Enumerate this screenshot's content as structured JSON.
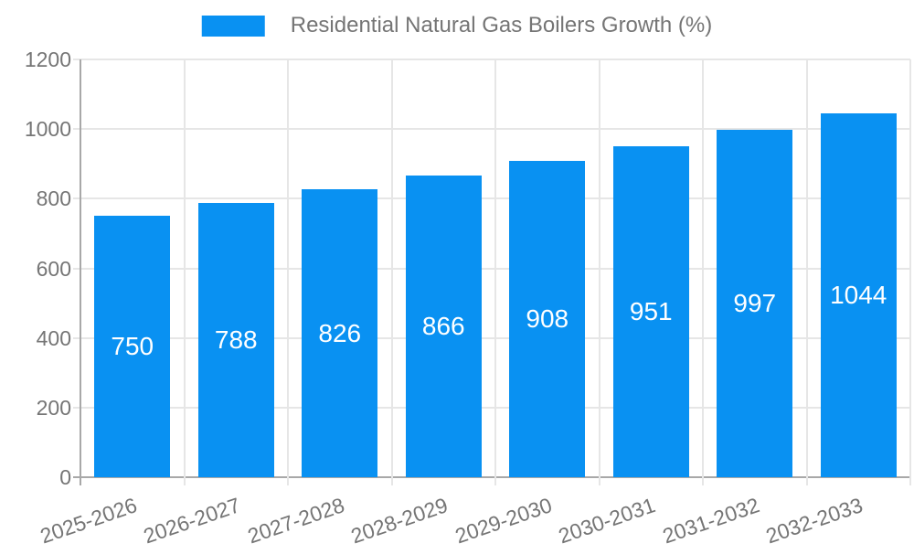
{
  "chart_data": {
    "type": "bar",
    "title": "Residential Natural Gas Boilers Growth (%)",
    "categories": [
      "2025-2026",
      "2026-2027",
      "2027-2028",
      "2028-2029",
      "2029-2030",
      "2030-2031",
      "2031-2032",
      "2032-2033"
    ],
    "values": [
      750,
      788,
      826,
      866,
      908,
      951,
      997,
      1044
    ],
    "xlabel": "",
    "ylabel": "",
    "ylim": [
      0,
      1200
    ],
    "yticks": [
      0,
      200,
      400,
      600,
      800,
      1000,
      1200
    ],
    "grid": true,
    "legend_position": "top-center",
    "value_labels": "inside-center",
    "colors": {
      "bar": "#0991f2",
      "grid": "#e6e6e6",
      "axis": "#a8a8a8",
      "tick_label": "#757575",
      "value_label": "#ffffff",
      "legend_text": "#757575",
      "background": "#ffffff"
    }
  }
}
